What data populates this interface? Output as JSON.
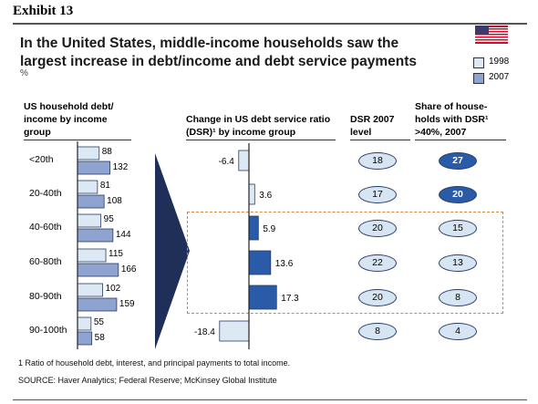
{
  "exhibit": "Exhibit 13",
  "title": "In the United States, middle-income households saw the largest increase in debt/income and debt service payments",
  "unit": "%",
  "legend": [
    {
      "label": "1998",
      "color": "#dce9f5"
    },
    {
      "label": "2007",
      "color": "#8ea3cf"
    }
  ],
  "flag_icon": "us-flag-icon",
  "headers": {
    "debt_income": "US household debt/ income by income group",
    "dsr_change": "Change in US debt service ratio (DSR)¹ by income group",
    "dsr_level": "DSR 2007 level",
    "share_high": "Share of house-holds with DSR¹ >40%, 2007"
  },
  "chart_data": [
    {
      "type": "bar",
      "orientation": "horizontal",
      "categories": [
        "<20th",
        "20-40th",
        "40-60th",
        "60-80th",
        "80-90th",
        "90-100th"
      ],
      "series": [
        {
          "name": "1998",
          "values": [
            88,
            81,
            95,
            115,
            102,
            55
          ]
        },
        {
          "name": "2007",
          "values": [
            132,
            108,
            144,
            166,
            159,
            58
          ]
        }
      ]
    },
    {
      "type": "bar",
      "orientation": "horizontal",
      "categories": [
        "<20th",
        "20-40th",
        "40-60th",
        "60-80th",
        "80-90th",
        "90-100th"
      ],
      "values": [
        -6.4,
        3.6,
        5.9,
        13.6,
        17.3,
        -18.4
      ],
      "highlight": [
        false,
        false,
        true,
        true,
        true,
        false
      ]
    }
  ],
  "dsr_level_values": [
    "18",
    "17",
    "20",
    "22",
    "20",
    "8"
  ],
  "share_values": [
    "27",
    "20",
    "15",
    "13",
    "8",
    "4"
  ],
  "share_dark": [
    true,
    true,
    false,
    false,
    false,
    false
  ],
  "footnote": "1 Ratio of household debt, interest, and principal payments to total income.",
  "source": "SOURCE: Haver Analytics; Federal Reserve; McKinsey Global Institute"
}
